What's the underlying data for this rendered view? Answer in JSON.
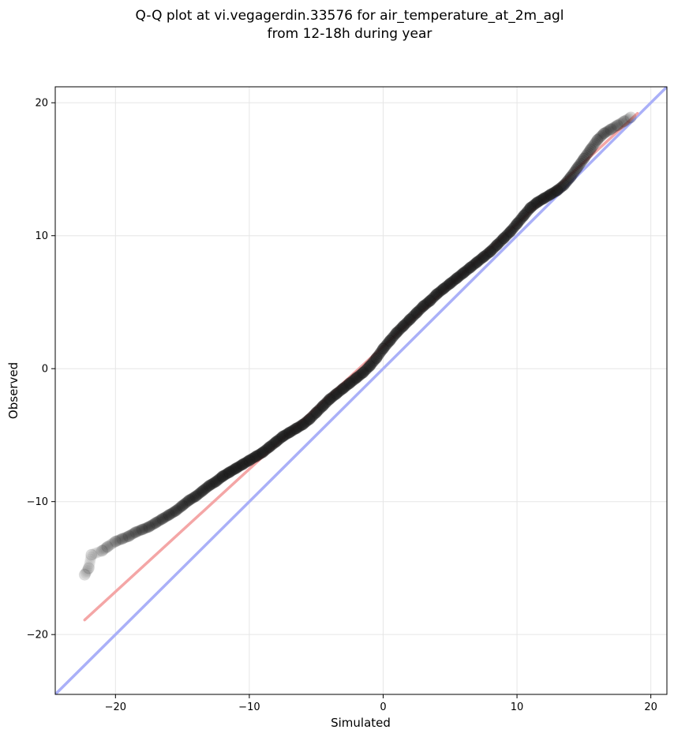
{
  "chart_data": {
    "type": "scatter",
    "title_lines": [
      "Q-Q plot at vi.vegagerdin.33576 for air_temperature_at_2m_agl",
      "from 12-18h during year"
    ],
    "xlabel": "Simulated",
    "ylabel": "Observed",
    "xlim": [
      -24.5,
      21.2
    ],
    "ylim": [
      -24.5,
      21.2
    ],
    "xticks": [
      -20,
      -10,
      0,
      10,
      20
    ],
    "yticks": [
      -20,
      -10,
      0,
      10,
      20
    ],
    "xtick_labels": [
      "−20",
      "−10",
      "0",
      "10",
      "20"
    ],
    "ytick_labels": [
      "−20",
      "−10",
      "0",
      "10",
      "20"
    ],
    "grid": true,
    "quantile_points": {
      "x": [
        -22.3,
        -22.0,
        -21.8,
        -21.0,
        -20.6,
        -20.0,
        -19.5,
        -19.0,
        -18.5,
        -18.0,
        -17.5,
        -17.0,
        -16.5,
        -16.0,
        -15.5,
        -15.0,
        -14.5,
        -14.0,
        -13.5,
        -13.0,
        -12.5,
        -12.0,
        -11.5,
        -11.0,
        -10.5,
        -10.0,
        -9.5,
        -9.0,
        -8.5,
        -8.0,
        -7.5,
        -7.0,
        -6.5,
        -6.0,
        -5.5,
        -5.0,
        -4.5,
        -4.0,
        -3.5,
        -3.0,
        -2.5,
        -2.0,
        -1.5,
        -1.0,
        -0.5,
        0.0,
        0.5,
        1.0,
        1.5,
        2.0,
        2.5,
        3.0,
        3.5,
        4.0,
        4.5,
        5.0,
        5.5,
        6.0,
        6.5,
        7.0,
        7.5,
        8.0,
        8.5,
        9.0,
        9.5,
        10.0,
        10.5,
        11.0,
        11.5,
        12.0,
        12.5,
        13.0,
        13.5,
        14.0,
        14.5,
        15.0,
        15.5,
        16.0,
        16.5,
        17.0,
        17.5,
        18.0,
        18.5
      ],
      "y": [
        -15.5,
        -15.0,
        -14.0,
        -13.7,
        -13.4,
        -13.0,
        -12.8,
        -12.6,
        -12.3,
        -12.1,
        -11.9,
        -11.6,
        -11.3,
        -11.0,
        -10.7,
        -10.3,
        -9.9,
        -9.6,
        -9.2,
        -8.8,
        -8.5,
        -8.1,
        -7.8,
        -7.5,
        -7.2,
        -6.9,
        -6.6,
        -6.3,
        -5.9,
        -5.5,
        -5.1,
        -4.8,
        -4.5,
        -4.2,
        -3.8,
        -3.3,
        -2.8,
        -2.3,
        -1.9,
        -1.5,
        -1.1,
        -0.7,
        -0.3,
        0.2,
        0.8,
        1.5,
        2.1,
        2.7,
        3.2,
        3.7,
        4.2,
        4.7,
        5.1,
        5.6,
        6.0,
        6.4,
        6.8,
        7.2,
        7.6,
        8.0,
        8.4,
        8.8,
        9.3,
        9.8,
        10.3,
        10.9,
        11.5,
        12.1,
        12.5,
        12.8,
        13.1,
        13.4,
        13.8,
        14.4,
        15.1,
        15.8,
        16.5,
        17.2,
        17.7,
        18.0,
        18.3,
        18.6,
        18.9
      ]
    },
    "fit_line": {
      "x": [
        -22.3,
        19.0
      ],
      "y": [
        -18.9,
        19.2
      ],
      "color": "#f4a6a6"
    },
    "identity_line": {
      "x": [
        -24.5,
        21.2
      ],
      "y": [
        -24.5,
        21.2
      ],
      "color": "#aab0f8"
    },
    "point_color": "#1a1a1a"
  }
}
